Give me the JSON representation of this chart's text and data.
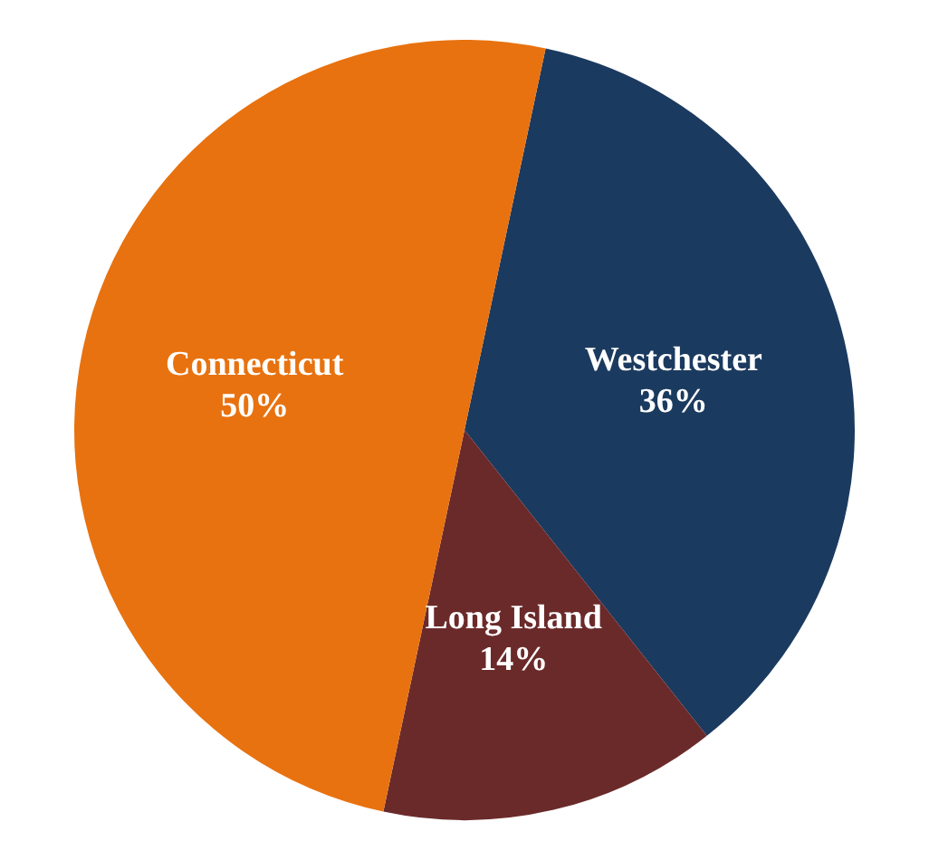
{
  "chart_data": {
    "type": "pie",
    "categories": [
      "Westchester",
      "Long Island",
      "Connecticut"
    ],
    "values": [
      36,
      14,
      50
    ],
    "colors": [
      "#1b3a5f",
      "#6b2a2a",
      "#e8720f"
    ],
    "value_labels": [
      "36%",
      "14%",
      "50%"
    ],
    "legend": false
  }
}
